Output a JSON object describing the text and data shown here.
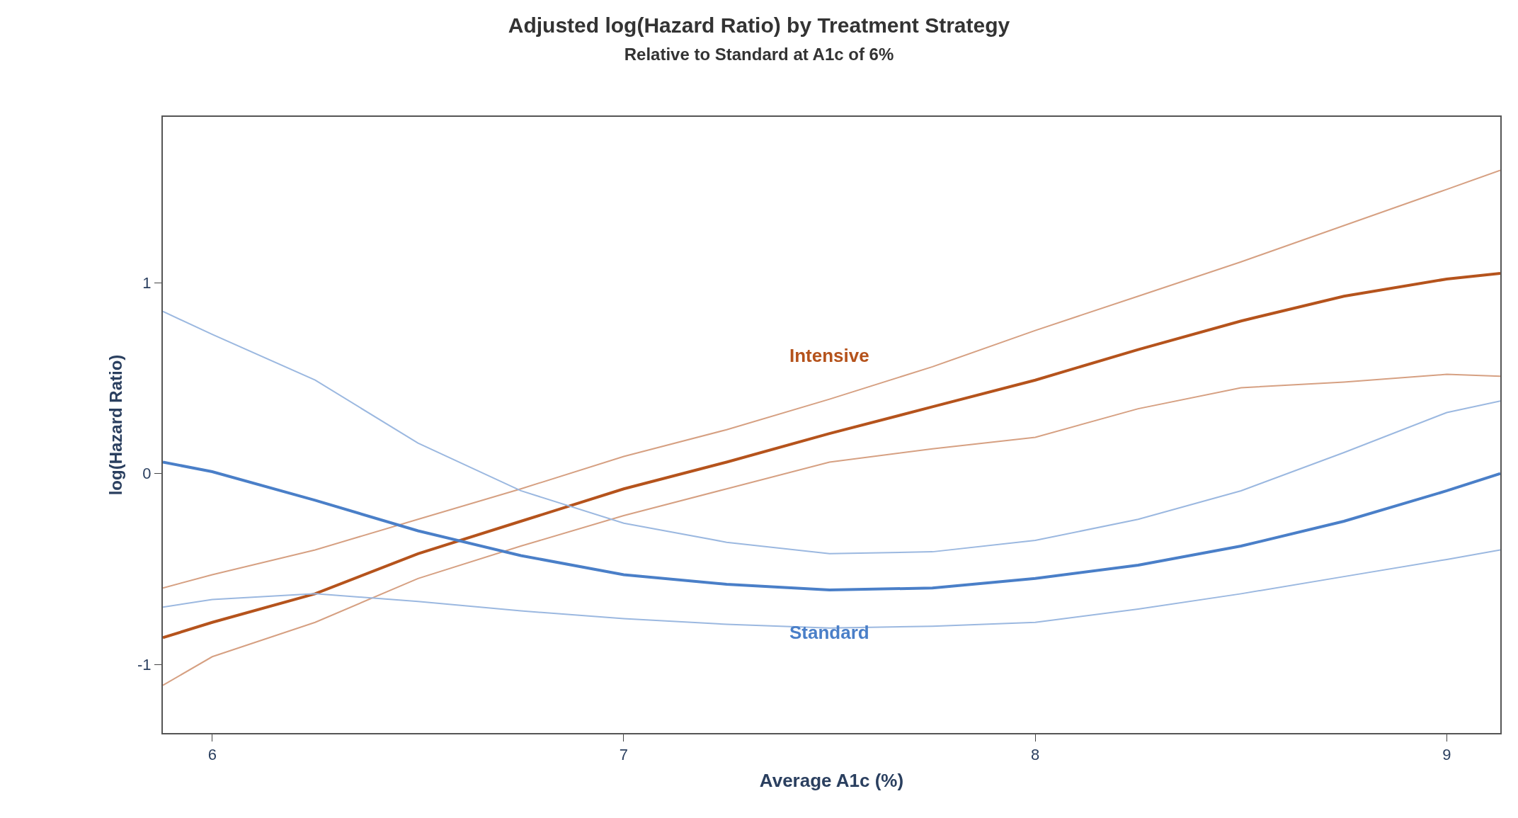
{
  "chart_data": {
    "type": "line",
    "title": "Adjusted log(Hazard Ratio) by Treatment Strategy",
    "subtitle": "Relative to Standard at A1c of 6%",
    "xlabel": "Average A1c (%)",
    "ylabel": "log(Hazard Ratio)",
    "x": [
      5.88,
      6.0,
      6.25,
      6.5,
      6.75,
      7.0,
      7.25,
      7.5,
      7.75,
      8.0,
      8.25,
      8.5,
      8.75,
      9.0,
      9.13
    ],
    "series": [
      {
        "name": "Intensive",
        "color": "#b5531c",
        "values": [
          -0.86,
          -0.78,
          -0.63,
          -0.42,
          -0.25,
          -0.08,
          0.06,
          0.21,
          0.35,
          0.49,
          0.65,
          0.8,
          0.93,
          1.02,
          1.05
        ]
      },
      {
        "color": "#d6a082",
        "values": [
          -1.11,
          -0.96,
          -0.78,
          -0.55,
          -0.38,
          -0.22,
          -0.08,
          0.06,
          0.13,
          0.19,
          0.34,
          0.45,
          0.48,
          0.52,
          0.51
        ]
      },
      {
        "color": "#d6a082",
        "values": [
          -0.6,
          -0.53,
          -0.4,
          -0.24,
          -0.08,
          0.09,
          0.23,
          0.39,
          0.56,
          0.75,
          0.93,
          1.11,
          1.3,
          1.49,
          1.59
        ]
      },
      {
        "name": "Standard",
        "color": "#4a7fc8",
        "values": [
          0.06,
          0.01,
          -0.14,
          -0.3,
          -0.43,
          -0.53,
          -0.58,
          -0.61,
          -0.6,
          -0.55,
          -0.48,
          -0.38,
          -0.25,
          -0.09,
          0.0
        ]
      },
      {
        "color": "#9bb8e0",
        "values": [
          -0.7,
          -0.66,
          -0.63,
          -0.67,
          -0.72,
          -0.76,
          -0.79,
          -0.81,
          -0.8,
          -0.78,
          -0.71,
          -0.63,
          -0.54,
          -0.45,
          -0.4
        ]
      },
      {
        "color": "#9bb8e0",
        "values": [
          0.85,
          0.73,
          0.49,
          0.16,
          -0.09,
          -0.26,
          -0.36,
          -0.42,
          -0.41,
          -0.35,
          -0.24,
          -0.09,
          0.11,
          0.32,
          0.38
        ]
      }
    ],
    "xlim": [
      5.88,
      9.13
    ],
    "ylim": [
      -1.36,
      1.87
    ],
    "xticks": [
      6,
      7,
      8,
      9
    ],
    "yticks": [
      -1,
      0,
      1
    ],
    "legend": false
  }
}
